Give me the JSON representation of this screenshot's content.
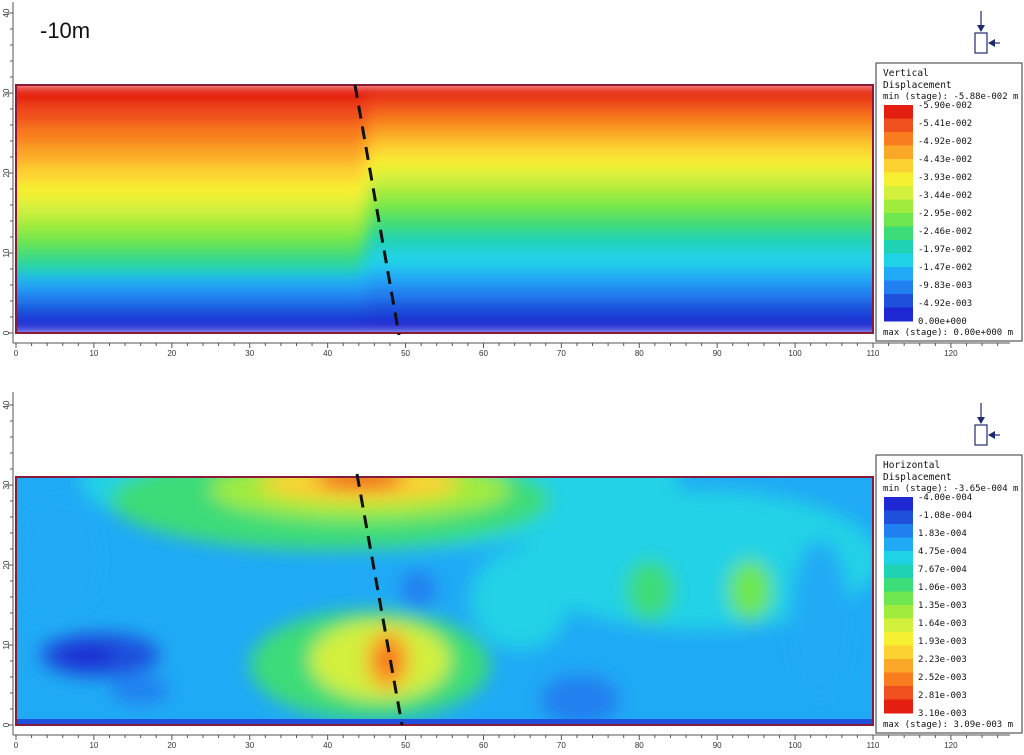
{
  "depth_label": "-10m",
  "axis": {
    "x_ticks": [
      0,
      10,
      20,
      30,
      40,
      50,
      60,
      70,
      80,
      90,
      100,
      110,
      120
    ],
    "y_ticks": [
      0,
      10,
      20,
      30,
      40
    ],
    "xlim": [
      0,
      128
    ],
    "ylim": [
      -1,
      42
    ]
  },
  "model": {
    "x_range": [
      0,
      109
    ],
    "y_range": [
      0,
      31
    ],
    "fault_line": {
      "top": [
        43.5,
        31
      ],
      "bottom": [
        48.8,
        0
      ]
    }
  },
  "panels": [
    {
      "legend": {
        "title_line1": "Vertical",
        "title_line2": "Displacement",
        "min_text": "min (stage): -5.88e-002 m",
        "max_text": "max (stage): 0.00e+000 m",
        "labels": [
          "-5.90e-002",
          "-5.41e-002",
          "-4.92e-002",
          "-4.43e-002",
          "-3.93e-002",
          "-3.44e-002",
          "-2.95e-002",
          "-2.46e-002",
          "-1.97e-002",
          "-1.47e-002",
          "-9.83e-003",
          "-4.92e-003",
          "0.00e+000"
        ]
      },
      "colors": [
        "#e41e10",
        "#f0501e",
        "#f87d1e",
        "#fba728",
        "#fcd232",
        "#f6f032",
        "#d2f03c",
        "#a0eb3c",
        "#6de650",
        "#3cdc78",
        "#20d2b4",
        "#20d2e6",
        "#20aaf5",
        "#2080f0",
        "#1e50dc",
        "#1e28d2"
      ]
    },
    {
      "legend": {
        "title_line1": "Horizontal",
        "title_line2": "Displacement",
        "min_text": "min (stage): -3.65e-004 m",
        "max_text": "max (stage): 3.09e-003 m",
        "labels": [
          "-4.00e-004",
          "-1.08e-004",
          "1.83e-004",
          "4.75e-004",
          "7.67e-004",
          "1.06e-003",
          "1.35e-003",
          "1.64e-003",
          "1.93e-003",
          "2.23e-003",
          "2.52e-003",
          "2.81e-003",
          "3.10e-003"
        ]
      },
      "colors": [
        "#1e28d2",
        "#1e50dc",
        "#2080f0",
        "#20aaf5",
        "#20d2e6",
        "#20d2b4",
        "#3cdc78",
        "#6de650",
        "#a0eb3c",
        "#d2f03c",
        "#f6f032",
        "#fcd232",
        "#fba728",
        "#f87d1e",
        "#f0501e",
        "#e41e10"
      ]
    }
  ],
  "chart_data": [
    {
      "type": "heatmap",
      "title": "Vertical Displacement",
      "x_ticks": [
        0,
        10,
        20,
        30,
        40,
        50,
        60,
        70,
        80,
        90,
        100,
        110,
        120
      ],
      "y_ticks": [
        0,
        10,
        20,
        30,
        40
      ],
      "legend_values": [
        -0.059,
        -0.0541,
        -0.0492,
        -0.0443,
        -0.0393,
        -0.0344,
        -0.0295,
        -0.0246,
        -0.0197,
        -0.0147,
        -0.00983,
        -0.00492,
        0.0
      ],
      "min": -0.0588,
      "max": 0.0,
      "units": "m"
    },
    {
      "type": "heatmap",
      "title": "Horizontal Displacement",
      "x_ticks": [
        0,
        10,
        20,
        30,
        40,
        50,
        60,
        70,
        80,
        90,
        100,
        110,
        120
      ],
      "y_ticks": [
        0,
        10,
        20,
        30,
        40
      ],
      "legend_values": [
        -0.0004,
        -0.000108,
        0.000183,
        0.000475,
        0.000767,
        0.00106,
        0.00135,
        0.00164,
        0.00193,
        0.00223,
        0.00252,
        0.00281,
        0.0031
      ],
      "min": -0.000365,
      "max": 0.00309,
      "units": "m"
    }
  ]
}
